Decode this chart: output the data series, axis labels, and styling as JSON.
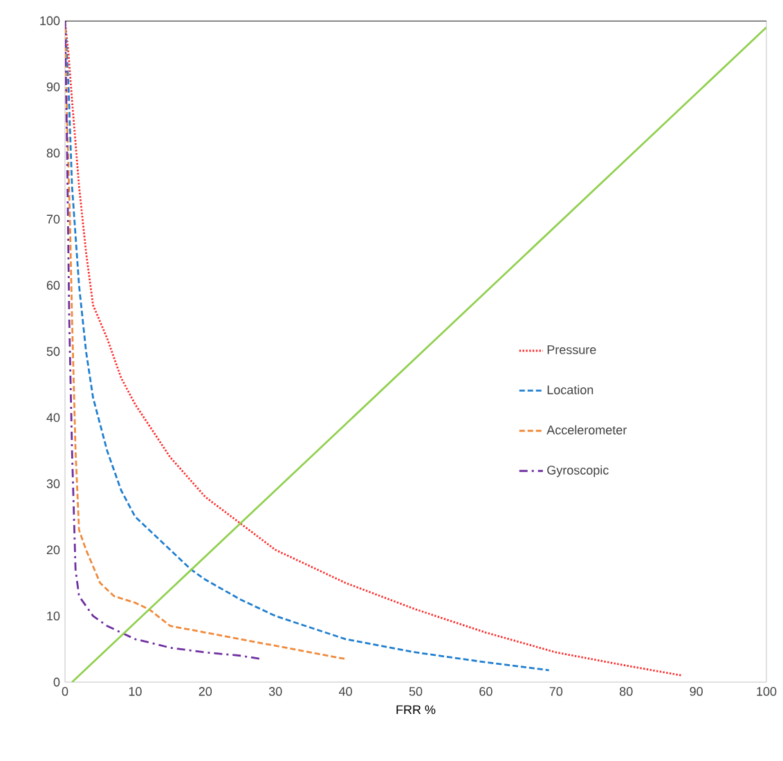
{
  "chart_data": {
    "type": "line",
    "xlabel": "FRR %",
    "xlim": [
      0,
      100
    ],
    "ylim": [
      0,
      100
    ],
    "xticks": [
      0,
      10,
      20,
      30,
      40,
      50,
      60,
      70,
      80,
      90,
      100
    ],
    "yticks": [
      0,
      10,
      20,
      30,
      40,
      50,
      60,
      70,
      80,
      90,
      100
    ],
    "grid": false,
    "legend": "right",
    "marker": "none",
    "series": [
      {
        "name": "Pressure",
        "color": "#ff2b2b",
        "line_style": "dotted",
        "x": [
          0,
          0.5,
          1,
          2,
          3,
          4,
          6,
          8,
          10,
          15,
          20,
          25,
          30,
          40,
          50,
          60,
          70,
          80,
          88
        ],
        "values": [
          100,
          95,
          88,
          75,
          65,
          57,
          52,
          46,
          42,
          34,
          28,
          24,
          20,
          15,
          11,
          7.5,
          4.5,
          2.5,
          1
        ]
      },
      {
        "name": "Location",
        "color": "#1f7fd0",
        "line_style": "dashed",
        "x": [
          0,
          0.5,
          1,
          2,
          3,
          4,
          6,
          8,
          10,
          15,
          18,
          20,
          25,
          30,
          40,
          50,
          60,
          69
        ],
        "values": [
          100,
          90,
          75,
          60,
          50,
          43,
          35,
          29,
          25,
          20,
          17,
          15.5,
          12.5,
          10,
          6.5,
          4.5,
          3,
          1.8
        ]
      },
      {
        "name": "Accelerometer",
        "color": "#f08a3c",
        "line_style": "dashed",
        "x": [
          0,
          0.3,
          0.7,
          1,
          1.5,
          2,
          3,
          5,
          7,
          10,
          12,
          15,
          20,
          25,
          30,
          35,
          40
        ],
        "values": [
          100,
          85,
          70,
          55,
          35,
          23,
          20,
          15,
          13,
          12,
          11,
          8.5,
          7.5,
          6.5,
          5.5,
          4.5,
          3.5
        ]
      },
      {
        "name": "Gyroscopic",
        "color": "#7030a0",
        "line_style": "dashdot",
        "x": [
          0,
          0.3,
          0.6,
          1,
          1.5,
          2,
          4,
          6,
          8,
          10,
          12,
          15,
          20,
          25,
          28
        ],
        "values": [
          100,
          80,
          55,
          35,
          17,
          13,
          10,
          8.5,
          7.5,
          6.5,
          6,
          5.2,
          4.5,
          4,
          3.5
        ]
      },
      {
        "color": "#92d050",
        "line_style": "solid",
        "x": [
          1,
          100
        ],
        "values": [
          0,
          99
        ]
      }
    ]
  }
}
